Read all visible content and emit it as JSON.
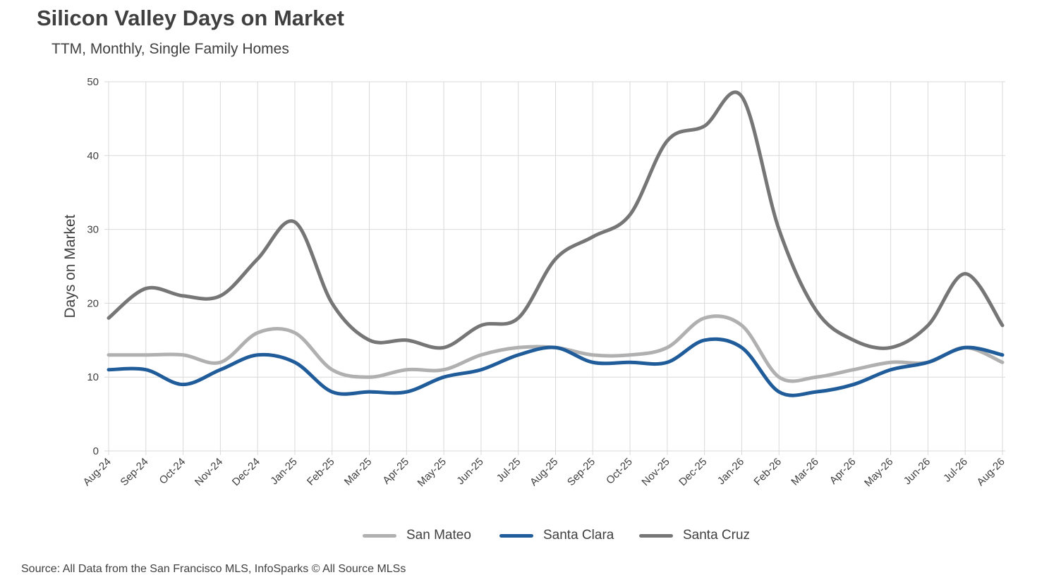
{
  "title": "Silicon Valley Days on Market",
  "subtitle": "TTM, Monthly, Single Family Homes",
  "source": "Source: All Data from the San Francisco MLS, InfoSparks © All Source MLSs",
  "chart_data": {
    "type": "line",
    "title": "Silicon Valley Days on Market",
    "subtitle": "TTM, Monthly, Single Family Homes",
    "xlabel": "",
    "ylabel": "Days on Market",
    "ylim": [
      0,
      50
    ],
    "yticks": [
      0,
      10,
      20,
      30,
      40,
      50
    ],
    "grid": true,
    "legend_position": "bottom",
    "categories": [
      "Aug-24",
      "Sep-24",
      "Oct-24",
      "Nov-24",
      "Dec-24",
      "Jan-25",
      "Feb-25",
      "Mar-25",
      "Apr-25",
      "May-25",
      "Jun-25",
      "Jul-25",
      "Aug-25",
      "Sep-25",
      "Oct-25",
      "Nov-25",
      "Dec-25",
      "Jan-26",
      "Feb-26",
      "Mar-26",
      "Apr-26",
      "May-26",
      "Jun-26",
      "Jul-26",
      "Aug-26"
    ],
    "series": [
      {
        "name": "San Mateo",
        "color": "#b0b0b0",
        "values": [
          13,
          13,
          13,
          12,
          16,
          16,
          11,
          10,
          11,
          11,
          13,
          14,
          14,
          13,
          13,
          14,
          18,
          17,
          10,
          10,
          11,
          12,
          12,
          14,
          12
        ]
      },
      {
        "name": "Santa Clara",
        "color": "#1f5c99",
        "values": [
          11,
          11,
          9,
          11,
          13,
          12,
          8,
          8,
          8,
          10,
          11,
          13,
          14,
          12,
          12,
          12,
          15,
          14,
          8,
          8,
          9,
          11,
          12,
          14,
          13
        ]
      },
      {
        "name": "Santa Cruz",
        "color": "#767676",
        "values": [
          18,
          22,
          21,
          21,
          26,
          31,
          20,
          15,
          15,
          14,
          17,
          18,
          26,
          29,
          32,
          42,
          44,
          48,
          30,
          19,
          15,
          14,
          17,
          24,
          17
        ]
      }
    ]
  }
}
